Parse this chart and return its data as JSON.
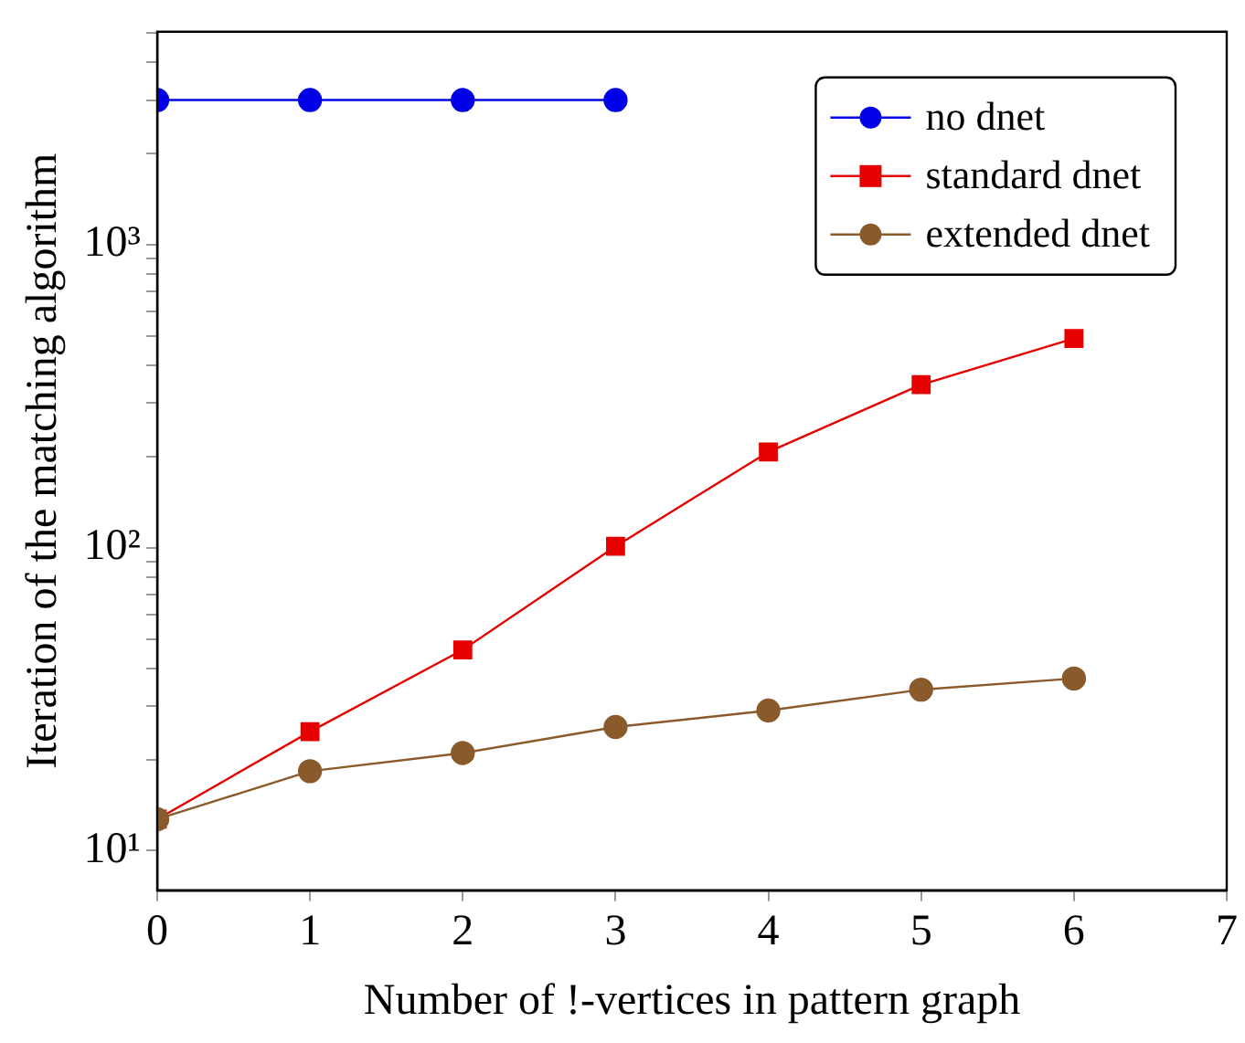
{
  "chart_data": {
    "type": "line",
    "xlabel": "Number of !-vertices in pattern graph",
    "ylabel": "Iteration of the matching algorithm",
    "x": [
      0,
      1,
      2,
      3,
      4,
      5,
      6
    ],
    "series": [
      {
        "name": "no dnet",
        "color": "#0000e6",
        "marker": "circle",
        "values": [
          3000,
          3000,
          3000,
          3000,
          null,
          null,
          null
        ]
      },
      {
        "name": "standard dnet",
        "color": "#e60000",
        "marker": "square",
        "values": [
          12.7,
          24.7,
          46,
          101,
          207,
          345,
          490
        ]
      },
      {
        "name": "extended dnet",
        "color": "#8b5a2b",
        "marker": "circle",
        "values": [
          12.7,
          18.3,
          21,
          25.6,
          29,
          34,
          37
        ]
      }
    ],
    "log": "y",
    "xlim": [
      0,
      7
    ],
    "xticks": [
      0,
      1,
      2,
      3,
      4,
      5,
      6,
      7
    ],
    "ylim": [
      7.4,
      5040
    ],
    "yticks": [
      {
        "value": 10,
        "label": "10¹"
      },
      {
        "value": 20,
        "label": null
      },
      {
        "value": 30,
        "label": null
      },
      {
        "value": 40,
        "label": null
      },
      {
        "value": 50,
        "label": null
      },
      {
        "value": 60,
        "label": null
      },
      {
        "value": 70,
        "label": null
      },
      {
        "value": 80,
        "label": null
      },
      {
        "value": 90,
        "label": null
      },
      {
        "value": 100,
        "label": "10²"
      },
      {
        "value": 200,
        "label": null
      },
      {
        "value": 300,
        "label": null
      },
      {
        "value": 400,
        "label": null
      },
      {
        "value": 500,
        "label": null
      },
      {
        "value": 600,
        "label": null
      },
      {
        "value": 700,
        "label": null
      },
      {
        "value": 800,
        "label": null
      },
      {
        "value": 900,
        "label": null
      },
      {
        "value": 1000,
        "label": "10³"
      },
      {
        "value": 2000,
        "label": null
      },
      {
        "value": 3000,
        "label": null
      },
      {
        "value": 4000,
        "label": null
      },
      {
        "value": 5000,
        "label": null
      }
    ],
    "grid": false,
    "legend": "top right",
    "line_style": "solid"
  }
}
